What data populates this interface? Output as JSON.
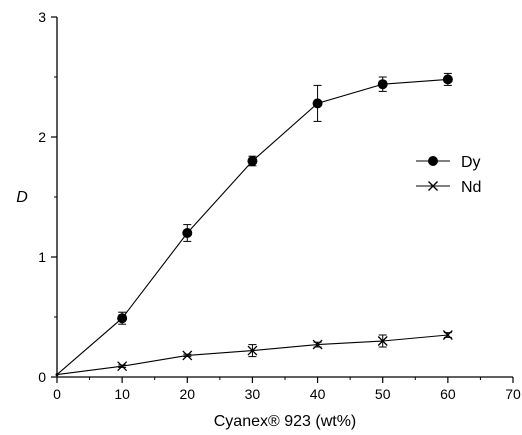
{
  "chart_data": {
    "type": "line",
    "title": "",
    "xlabel": "Cyanex® 923 (wt%)",
    "ylabel": "D",
    "xlim": [
      0,
      70
    ],
    "ylim": [
      0,
      3
    ],
    "xticks": [
      0,
      10,
      20,
      30,
      40,
      50,
      60,
      70
    ],
    "yticks": [
      0,
      1,
      2,
      3
    ],
    "grid": false,
    "legend_position": "right",
    "x": [
      0,
      10,
      20,
      30,
      40,
      50,
      60
    ],
    "series": [
      {
        "name": "Dy",
        "marker": "filled-circle",
        "color": "#000000",
        "values": [
          0.02,
          0.49,
          1.2,
          1.8,
          2.28,
          2.44,
          2.48
        ],
        "error": [
          0,
          0.05,
          0.07,
          0.04,
          0.15,
          0.06,
          0.05
        ]
      },
      {
        "name": "Nd",
        "marker": "x-cross",
        "color": "#000000",
        "values": [
          0.02,
          0.09,
          0.18,
          0.22,
          0.27,
          0.3,
          0.35
        ],
        "error": [
          0,
          0.01,
          0.01,
          0.05,
          0.02,
          0.05,
          0.02
        ]
      }
    ]
  }
}
